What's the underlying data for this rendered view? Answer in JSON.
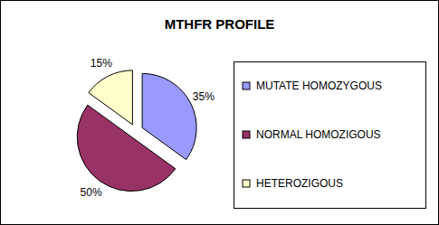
{
  "chart_data": {
    "type": "pie",
    "title": "MTHFR PROFILE",
    "categories": [
      "MUTATE HOMOZYGOUS",
      "NORMAL HOMOZIGOUS",
      "HETEROZIGOUS"
    ],
    "values": [
      35,
      50,
      15
    ],
    "value_labels": [
      "35%",
      "50%",
      "15%"
    ],
    "colors": [
      "#9999ff",
      "#993366",
      "#ffffcc"
    ],
    "data_labels": true,
    "legend": "right"
  }
}
